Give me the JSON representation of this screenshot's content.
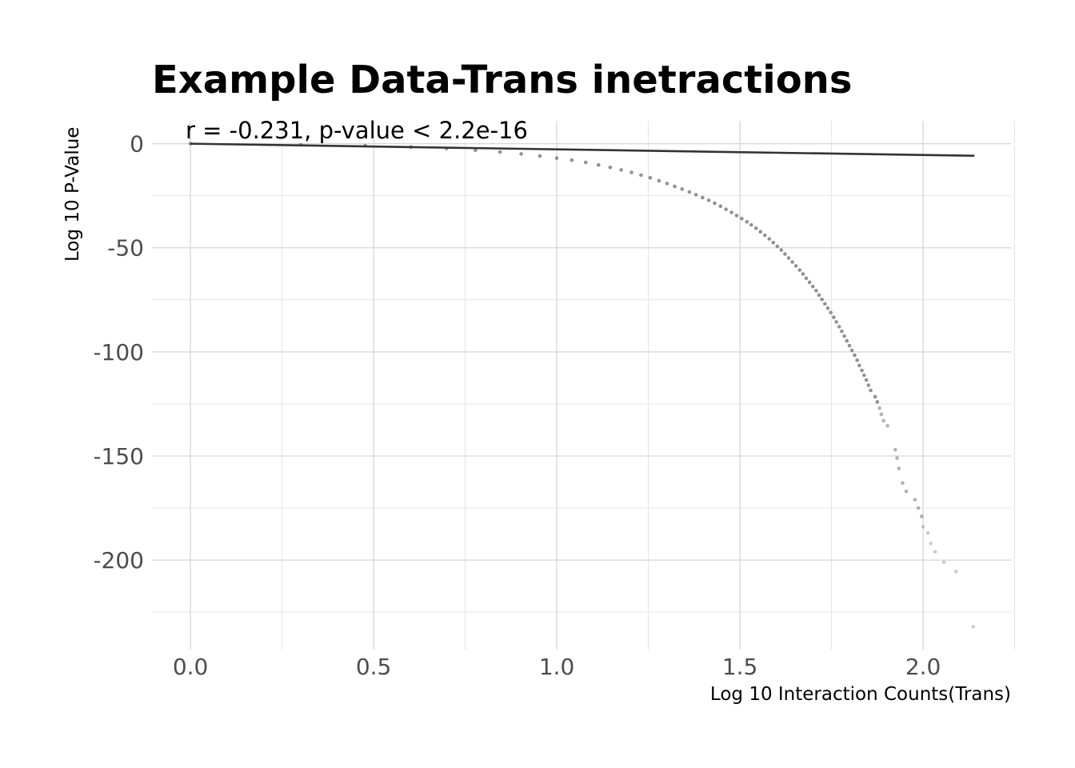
{
  "chart_data": {
    "type": "scatter",
    "title": "Example Data-Trans inetractions",
    "xlabel": "Log 10 Interaction Counts(Trans)",
    "ylabel": "Log 10 P-Value",
    "annotation": "r = -0.231, p-value < 2.2e-16",
    "xlim": [
      -0.105,
      2.24
    ],
    "ylim": [
      -243,
      11
    ],
    "x_ticks": [
      0.0,
      0.5,
      1.0,
      1.5,
      2.0
    ],
    "x_tick_labels": [
      "0.0",
      "0.5",
      "1.0",
      "1.5",
      "2.0"
    ],
    "y_ticks": [
      0,
      -50,
      -100,
      -150,
      -200
    ],
    "y_tick_labels": [
      "0",
      "-50",
      "-100",
      "-150",
      "-200"
    ],
    "grid": true,
    "point_color": "#7f7f7f",
    "trend_line": {
      "color": "#333333",
      "x": [
        0.0,
        2.14
      ],
      "y": [
        0.0,
        -5.8
      ]
    },
    "points": {
      "x": [
        0.0,
        0.301,
        0.477,
        0.602,
        0.699,
        0.778,
        0.845,
        0.903,
        0.954,
        1.0,
        1.041,
        1.079,
        1.114,
        1.146,
        1.176,
        1.204,
        1.23,
        1.255,
        1.279,
        1.301,
        1.322,
        1.342,
        1.362,
        1.38,
        1.398,
        1.415,
        1.431,
        1.447,
        1.462,
        1.477,
        1.491,
        1.505,
        1.519,
        1.531,
        1.544,
        1.556,
        1.568,
        1.58,
        1.591,
        1.602,
        1.613,
        1.623,
        1.633,
        1.643,
        1.653,
        1.663,
        1.672,
        1.681,
        1.69,
        1.699,
        1.708,
        1.716,
        1.724,
        1.732,
        1.74,
        1.748,
        1.756,
        1.763,
        1.771,
        1.778,
        1.785,
        1.792,
        1.799,
        1.806,
        1.813,
        1.82,
        1.826,
        1.833,
        1.839,
        1.845,
        1.851,
        1.857,
        1.869,
        1.875,
        1.881,
        1.886,
        1.892,
        1.903,
        1.924,
        1.929,
        1.934,
        1.944,
        1.954,
        1.978,
        1.987,
        1.996,
        2.0,
        2.013,
        2.021,
        2.033,
        2.057,
        2.09,
        2.137
      ],
      "y": [
        0.0,
        -0.5,
        -1.0,
        -1.6,
        -2.3,
        -3.1,
        -4.0,
        -4.9,
        -5.9,
        -6.9,
        -7.9,
        -9.0,
        -10.2,
        -11.4,
        -12.6,
        -13.8,
        -15.1,
        -16.4,
        -17.8,
        -19.1,
        -20.5,
        -21.8,
        -23.2,
        -24.5,
        -25.9,
        -27.2,
        -28.6,
        -30.0,
        -31.5,
        -33.0,
        -34.5,
        -36.0,
        -37.5,
        -39.0,
        -40.6,
        -42.3,
        -44.0,
        -45.7,
        -47.5,
        -49.3,
        -51.1,
        -53.0,
        -54.9,
        -56.8,
        -58.7,
        -60.7,
        -62.6,
        -64.6,
        -66.6,
        -68.6,
        -70.6,
        -72.7,
        -74.8,
        -76.9,
        -79.0,
        -81.1,
        -83.4,
        -85.6,
        -87.9,
        -90.1,
        -92.4,
        -94.7,
        -97.0,
        -99.3,
        -101.6,
        -104.0,
        -106.5,
        -108.9,
        -111.2,
        -113.5,
        -116.0,
        -118.5,
        -121.5,
        -124.0,
        -127.0,
        -130.0,
        -133.0,
        -135.5,
        -147.0,
        -151.0,
        -156.0,
        -163.0,
        -167.0,
        -171.0,
        -175.0,
        -179.0,
        -184.0,
        -187.0,
        -192.0,
        -196.0,
        -201.0,
        -205.5,
        -232.0
      ]
    }
  }
}
